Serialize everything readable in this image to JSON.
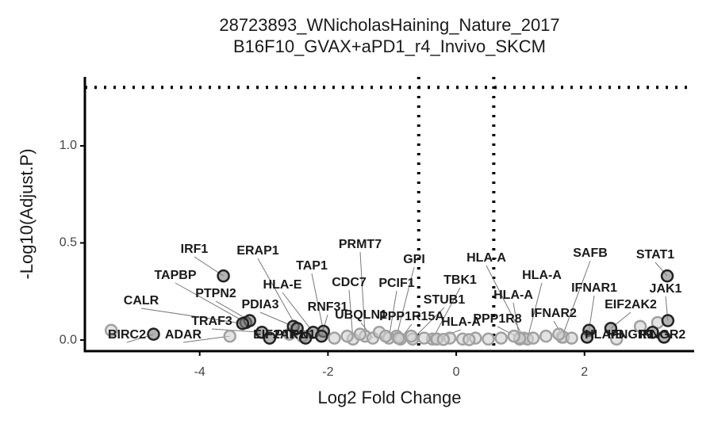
{
  "chart_data": {
    "type": "scatter",
    "title": "28723893_WNicholasHaining_Nature_2017",
    "subtitle": "B16F10_GVAX+aPD1_r4_Invivo_SKCM",
    "xlabel": "Log2 Fold Change",
    "ylabel": "-Log10(Adjust.P)",
    "xlim": [
      -5.79,
      3.71
    ],
    "ylim": [
      -0.057,
      1.355
    ],
    "xticks": [
      -4,
      -2,
      0,
      2
    ],
    "yticks": [
      {
        "value": 0,
        "label": "0.0"
      },
      {
        "value": 0.5,
        "label": "0.5"
      },
      {
        "value": 1,
        "label": "1.0"
      }
    ],
    "hlines": [
      1.301
    ],
    "vlines": [
      -0.585,
      0.585
    ],
    "groups": [
      {
        "fill": "#808080",
        "stroke": "#222222",
        "x": [
          3.29,
          3.3,
          -3.63,
          -3.28,
          -3.22,
          -3.33,
          -2.54,
          -3.03,
          -2.48,
          -2.23,
          -2.07,
          -2.1,
          -4.72,
          -2.91,
          -2.35,
          2.07,
          2.41,
          2.04,
          3.06,
          3.24
        ],
        "values": [
          0.33,
          0.1,
          0.33,
          0.09,
          0.1,
          0.085,
          0.07,
          0.04,
          0.06,
          0.04,
          0.045,
          0.02,
          0.03,
          0.01,
          0.01,
          0.05,
          0.06,
          0.015,
          0.04,
          0.015
        ],
        "labels": [
          "STAT1",
          "JAK1",
          "IRF1",
          "TAPBP",
          "PTPN2",
          "CALR",
          "PDIA3",
          "TRAF3",
          "ERAP1",
          "HLA-E",
          "TAP1",
          "RNF31",
          "BIRC2",
          "EIF2AK1",
          "PTPN1",
          "IFNAR1",
          "EIF2AK2",
          "HLA-B",
          "IFNGR1",
          "IFNGR2"
        ]
      },
      {
        "fill": "#d0d0d0",
        "stroke": "#a0a0a0",
        "x": [
          -3.53,
          -1.42,
          -1.61,
          -1.3,
          -0.93,
          -1.05,
          -0.87,
          -0.37,
          -0.68,
          1.05,
          1.11,
          0.99,
          -0.31,
          0.99,
          1.65,
          1.67,
          -5.38,
          2.87,
          3.14,
          2.5,
          -1.9,
          -1.7,
          -1.5,
          -1.2,
          -1.1,
          -0.9,
          -0.7,
          -0.5,
          -0.3,
          -0.1,
          0.1,
          0.3,
          0.5,
          0.7,
          0.9,
          1.2,
          1.4,
          1.6,
          1.8,
          -2.6,
          -2.4,
          -0.2,
          0.2
        ],
        "values": [
          0.02,
          0.02,
          0.005,
          0.01,
          0.02,
          0.01,
          0.005,
          0.005,
          0.005,
          0.01,
          0.005,
          0.005,
          0.005,
          0.01,
          0.015,
          0.015,
          0.05,
          0.07,
          0.09,
          0.005,
          0.01,
          0.02,
          0.03,
          0.04,
          0.02,
          0.01,
          0.02,
          0.01,
          0.005,
          0.01,
          0.005,
          0.01,
          0.005,
          0.01,
          0.02,
          0.01,
          0.02,
          0.03,
          0.01,
          0.03,
          0.02,
          0.003,
          0.002
        ],
        "labels": [
          "ADAR",
          "PRMT7",
          "CDC7",
          "UBQLN1",
          "GPI",
          "PCIF1",
          "PPP1R15A",
          "TBK1",
          "STUB1",
          "HLA-A",
          "HLA-A",
          "HLA-A",
          "HLA-A",
          "PPP1R8",
          "SAFB",
          "IFNAR2",
          null,
          null,
          null,
          null,
          null,
          null,
          null,
          null,
          null,
          null,
          null,
          null,
          null,
          null,
          null,
          null,
          null,
          null,
          null,
          null,
          null,
          null,
          null,
          null,
          null,
          null,
          null
        ]
      }
    ]
  }
}
